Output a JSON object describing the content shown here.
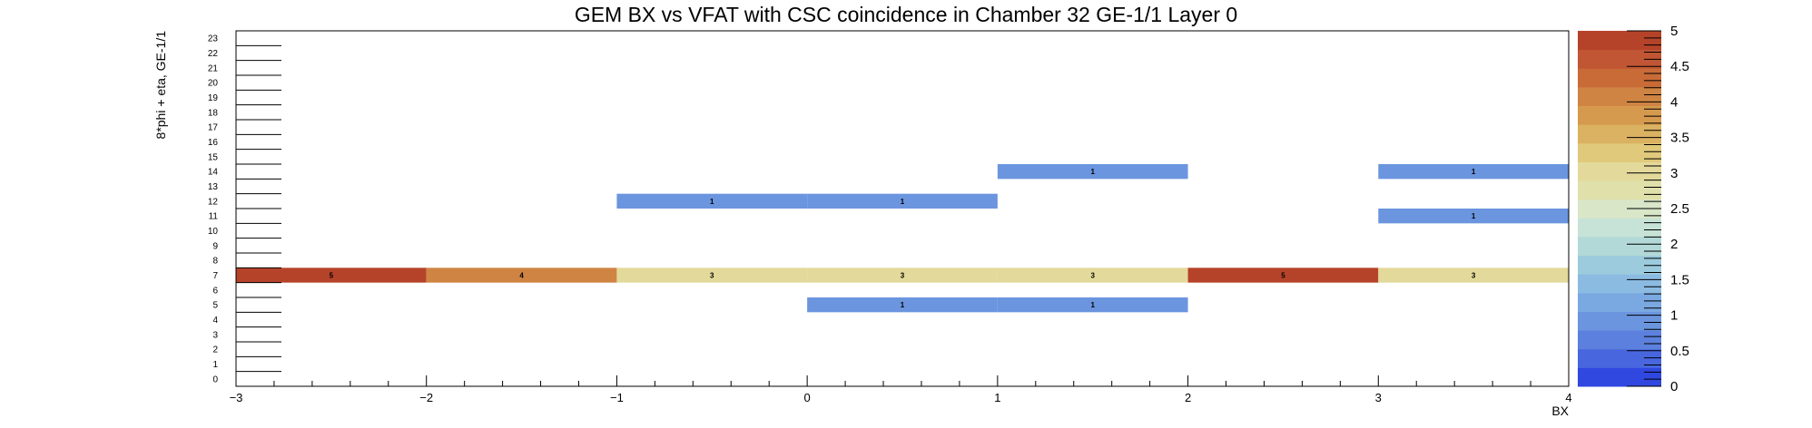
{
  "chart_data": {
    "type": "heatmap",
    "title": "GEM BX vs VFAT with CSC coincidence in Chamber 32 GE-1/1 Layer 0",
    "xlabel": "BX",
    "ylabel": "8*phi + eta, GE-1/1",
    "xlim": [
      -3,
      4
    ],
    "ylim": [
      0,
      24
    ],
    "x_ticks": [
      "−3",
      "−2",
      "−1",
      "0",
      "1",
      "2",
      "3",
      "4"
    ],
    "y_ticks": [
      "0",
      "1",
      "2",
      "3",
      "4",
      "5",
      "6",
      "7",
      "8",
      "9",
      "10",
      "11",
      "12",
      "13",
      "14",
      "15",
      "16",
      "17",
      "18",
      "19",
      "20",
      "21",
      "22",
      "23"
    ],
    "zlim": [
      0,
      5
    ],
    "z_ticks": [
      "0",
      "0.5",
      "1",
      "1.5",
      "2",
      "2.5",
      "3",
      "3.5",
      "4",
      "4.5",
      "5"
    ],
    "cells": [
      {
        "x": -3,
        "y": 7,
        "value": 5
      },
      {
        "x": -2,
        "y": 7,
        "value": 4
      },
      {
        "x": -1,
        "y": 7,
        "value": 3
      },
      {
        "x": 0,
        "y": 7,
        "value": 3
      },
      {
        "x": 1,
        "y": 7,
        "value": 3
      },
      {
        "x": 2,
        "y": 7,
        "value": 5
      },
      {
        "x": 3,
        "y": 7,
        "value": 3
      },
      {
        "x": 0,
        "y": 5,
        "value": 1
      },
      {
        "x": 1,
        "y": 5,
        "value": 1
      },
      {
        "x": 3,
        "y": 11,
        "value": 1
      },
      {
        "x": -1,
        "y": 12,
        "value": 1
      },
      {
        "x": 0,
        "y": 12,
        "value": 1
      },
      {
        "x": 1,
        "y": 14,
        "value": 1
      },
      {
        "x": 3,
        "y": 14,
        "value": 1
      }
    ],
    "palette": [
      "#3047e0",
      "#4867df",
      "#5c80dd",
      "#6b95de",
      "#7aa9e1",
      "#8cbbe2",
      "#9ccbdd",
      "#b2d9d8",
      "#c7e2d6",
      "#d9e6c8",
      "#e0e0ab",
      "#e3d99a",
      "#e0c97a",
      "#dab262",
      "#d59a4e",
      "#cf8443",
      "#c96b37",
      "#c15634",
      "#b5432a"
    ]
  }
}
